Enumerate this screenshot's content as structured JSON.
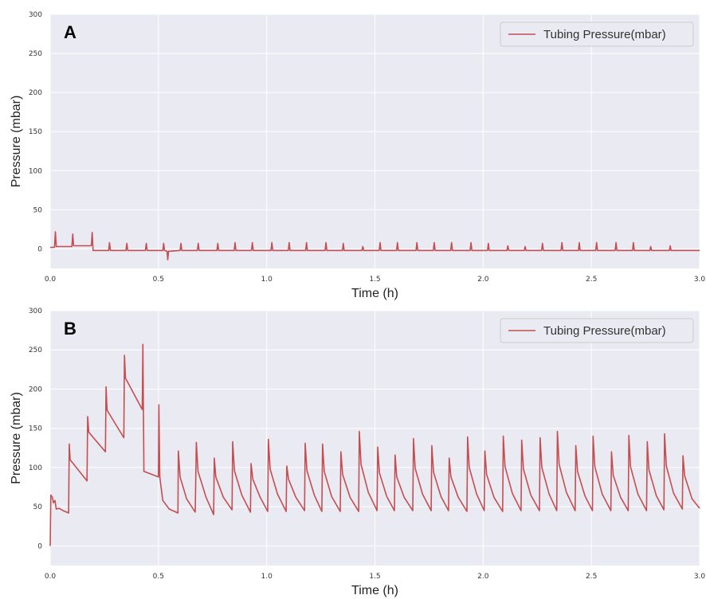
{
  "colors": {
    "plot_background": "#eaeaf2",
    "grid": "#ffffff",
    "series": "#c44e52",
    "legend_border": "#cccccc"
  },
  "chart_data": [
    {
      "type": "line",
      "panel_label": "A",
      "xlabel": "Time (h)",
      "ylabel": "Pressure (mbar)",
      "xlim": [
        0,
        3.0
      ],
      "ylim": [
        -25,
        300
      ],
      "x_ticks": [
        "0.0",
        "0.5",
        "1.0",
        "1.5",
        "2.0",
        "2.5",
        "3.0"
      ],
      "y_ticks": [
        "0",
        "50",
        "100",
        "150",
        "200",
        "250",
        "300"
      ],
      "grid": true,
      "legend_position": "top-right",
      "series": [
        {
          "name": "Tubing Pressure(mbar)",
          "points": [
            [
              0.0,
              2
            ],
            [
              0.02,
              2
            ],
            [
              0.024,
              22
            ],
            [
              0.028,
              3
            ],
            [
              0.1,
              3
            ],
            [
              0.104,
              19
            ],
            [
              0.108,
              4
            ],
            [
              0.19,
              4
            ],
            [
              0.194,
              21
            ],
            [
              0.198,
              -2
            ],
            [
              0.27,
              -2
            ],
            [
              0.274,
              8
            ],
            [
              0.278,
              -2
            ],
            [
              0.35,
              -2
            ],
            [
              0.354,
              7
            ],
            [
              0.358,
              -2
            ],
            [
              0.44,
              -2
            ],
            [
              0.444,
              7
            ],
            [
              0.448,
              -2
            ],
            [
              0.52,
              -2
            ],
            [
              0.524,
              7
            ],
            [
              0.528,
              -2
            ],
            [
              0.54,
              -3
            ],
            [
              0.543,
              -14
            ],
            [
              0.547,
              -3
            ],
            [
              0.6,
              -2
            ],
            [
              0.604,
              7
            ],
            [
              0.608,
              -2
            ],
            [
              0.68,
              -2
            ],
            [
              0.684,
              7
            ],
            [
              0.688,
              -2
            ],
            [
              0.77,
              -2
            ],
            [
              0.774,
              7
            ],
            [
              0.778,
              -2
            ],
            [
              0.85,
              -2
            ],
            [
              0.854,
              8
            ],
            [
              0.858,
              -2
            ],
            [
              0.93,
              -2
            ],
            [
              0.934,
              8
            ],
            [
              0.938,
              -2
            ],
            [
              1.02,
              -2
            ],
            [
              1.024,
              8
            ],
            [
              1.028,
              -2
            ],
            [
              1.1,
              -2
            ],
            [
              1.104,
              8
            ],
            [
              1.108,
              -2
            ],
            [
              1.18,
              -2
            ],
            [
              1.184,
              8
            ],
            [
              1.188,
              -2
            ],
            [
              1.27,
              -2
            ],
            [
              1.274,
              8
            ],
            [
              1.278,
              -2
            ],
            [
              1.35,
              -2
            ],
            [
              1.354,
              7
            ],
            [
              1.358,
              -2
            ],
            [
              1.44,
              -2
            ],
            [
              1.444,
              3
            ],
            [
              1.448,
              -2
            ],
            [
              1.52,
              -2
            ],
            [
              1.524,
              8
            ],
            [
              1.528,
              -2
            ],
            [
              1.6,
              -2
            ],
            [
              1.604,
              8
            ],
            [
              1.608,
              -2
            ],
            [
              1.69,
              -2
            ],
            [
              1.694,
              8
            ],
            [
              1.698,
              -2
            ],
            [
              1.77,
              -2
            ],
            [
              1.774,
              8
            ],
            [
              1.778,
              -2
            ],
            [
              1.85,
              -2
            ],
            [
              1.854,
              8
            ],
            [
              1.858,
              -2
            ],
            [
              1.94,
              -2
            ],
            [
              1.944,
              8
            ],
            [
              1.948,
              -2
            ],
            [
              2.02,
              -2
            ],
            [
              2.024,
              7
            ],
            [
              2.028,
              -2
            ],
            [
              2.11,
              -2
            ],
            [
              2.114,
              4
            ],
            [
              2.118,
              -2
            ],
            [
              2.19,
              -2
            ],
            [
              2.194,
              3
            ],
            [
              2.198,
              -2
            ],
            [
              2.27,
              -2
            ],
            [
              2.274,
              7
            ],
            [
              2.278,
              -2
            ],
            [
              2.36,
              -2
            ],
            [
              2.364,
              8
            ],
            [
              2.368,
              -2
            ],
            [
              2.44,
              -2
            ],
            [
              2.444,
              8
            ],
            [
              2.448,
              -2
            ],
            [
              2.52,
              -2
            ],
            [
              2.524,
              8
            ],
            [
              2.528,
              -2
            ],
            [
              2.61,
              -2
            ],
            [
              2.614,
              8
            ],
            [
              2.618,
              -2
            ],
            [
              2.69,
              -2
            ],
            [
              2.694,
              8
            ],
            [
              2.698,
              -2
            ],
            [
              2.77,
              -2
            ],
            [
              2.774,
              3
            ],
            [
              2.778,
              -2
            ],
            [
              2.86,
              -2
            ],
            [
              2.864,
              4
            ],
            [
              2.868,
              -2
            ],
            [
              3.0,
              -2
            ]
          ]
        }
      ]
    },
    {
      "type": "line",
      "panel_label": "B",
      "xlabel": "Time (h)",
      "ylabel": "Pressure (mbar)",
      "xlim": [
        0,
        3.0
      ],
      "ylim": [
        -25,
        300
      ],
      "x_ticks": [
        "0.0",
        "0.5",
        "1.0",
        "1.5",
        "2.0",
        "2.5",
        "3.0"
      ],
      "y_ticks": [
        "0",
        "50",
        "100",
        "150",
        "200",
        "250",
        "300"
      ],
      "grid": true,
      "legend_position": "top-right",
      "series": [
        {
          "name": "Tubing Pressure(mbar)",
          "points": [
            [
              0.0,
              0
            ],
            [
              0.003,
              65
            ],
            [
              0.01,
              62
            ],
            [
              0.015,
              55
            ],
            [
              0.022,
              58
            ],
            [
              0.028,
              47
            ],
            [
              0.04,
              48
            ],
            [
              0.06,
              45
            ],
            [
              0.085,
              42
            ],
            [
              0.088,
              130
            ],
            [
              0.092,
              110
            ],
            [
              0.17,
              83
            ],
            [
              0.173,
              165
            ],
            [
              0.178,
              145
            ],
            [
              0.255,
              120
            ],
            [
              0.258,
              203
            ],
            [
              0.263,
              173
            ],
            [
              0.34,
              138
            ],
            [
              0.343,
              243
            ],
            [
              0.348,
              214
            ],
            [
              0.425,
              174
            ],
            [
              0.428,
              257
            ],
            [
              0.433,
              95
            ],
            [
              0.5,
              88
            ],
            [
              0.502,
              180
            ],
            [
              0.506,
              88
            ],
            [
              0.52,
              58
            ],
            [
              0.55,
              47
            ],
            [
              0.59,
              42
            ],
            [
              0.592,
              121
            ],
            [
              0.6,
              88
            ],
            [
              0.63,
              60
            ],
            [
              0.67,
              43
            ],
            [
              0.675,
              132
            ],
            [
              0.683,
              95
            ],
            [
              0.72,
              62
            ],
            [
              0.755,
              40
            ],
            [
              0.758,
              112
            ],
            [
              0.765,
              88
            ],
            [
              0.8,
              62
            ],
            [
              0.84,
              46
            ],
            [
              0.843,
              133
            ],
            [
              0.851,
              96
            ],
            [
              0.885,
              65
            ],
            [
              0.925,
              43
            ],
            [
              0.928,
              105
            ],
            [
              0.936,
              85
            ],
            [
              0.97,
              62
            ],
            [
              1.005,
              44
            ],
            [
              1.008,
              136
            ],
            [
              1.016,
              98
            ],
            [
              1.05,
              66
            ],
            [
              1.09,
              44
            ],
            [
              1.093,
              102
            ],
            [
              1.101,
              85
            ],
            [
              1.135,
              62
            ],
            [
              1.175,
              45
            ],
            [
              1.178,
              131
            ],
            [
              1.186,
              96
            ],
            [
              1.22,
              65
            ],
            [
              1.255,
              44
            ],
            [
              1.258,
              130
            ],
            [
              1.266,
              95
            ],
            [
              1.3,
              63
            ],
            [
              1.34,
              44
            ],
            [
              1.343,
              120
            ],
            [
              1.351,
              91
            ],
            [
              1.385,
              62
            ],
            [
              1.425,
              44
            ],
            [
              1.428,
              146
            ],
            [
              1.436,
              104
            ],
            [
              1.47,
              68
            ],
            [
              1.51,
              45
            ],
            [
              1.513,
              126
            ],
            [
              1.521,
              93
            ],
            [
              1.555,
              63
            ],
            [
              1.59,
              45
            ],
            [
              1.593,
              116
            ],
            [
              1.601,
              88
            ],
            [
              1.635,
              62
            ],
            [
              1.675,
              45
            ],
            [
              1.678,
              137
            ],
            [
              1.686,
              99
            ],
            [
              1.72,
              66
            ],
            [
              1.76,
              45
            ],
            [
              1.763,
              128
            ],
            [
              1.771,
              94
            ],
            [
              1.805,
              63
            ],
            [
              1.84,
              45
            ],
            [
              1.843,
              112
            ],
            [
              1.851,
              88
            ],
            [
              1.885,
              62
            ],
            [
              1.925,
              44
            ],
            [
              1.928,
              139
            ],
            [
              1.936,
              100
            ],
            [
              1.97,
              66
            ],
            [
              2.005,
              45
            ],
            [
              2.008,
              121
            ],
            [
              2.016,
              91
            ],
            [
              2.05,
              62
            ],
            [
              2.09,
              44
            ],
            [
              2.093,
              140
            ],
            [
              2.101,
              101
            ],
            [
              2.135,
              67
            ],
            [
              2.175,
              45
            ],
            [
              2.178,
              135
            ],
            [
              2.186,
              98
            ],
            [
              2.22,
              65
            ],
            [
              2.26,
              45
            ],
            [
              2.263,
              138
            ],
            [
              2.271,
              100
            ],
            [
              2.305,
              66
            ],
            [
              2.34,
              45
            ],
            [
              2.343,
              146
            ],
            [
              2.351,
              104
            ],
            [
              2.385,
              68
            ],
            [
              2.425,
              45
            ],
            [
              2.428,
              128
            ],
            [
              2.436,
              95
            ],
            [
              2.47,
              64
            ],
            [
              2.505,
              45
            ],
            [
              2.508,
              140
            ],
            [
              2.516,
              101
            ],
            [
              2.55,
              66
            ],
            [
              2.59,
              45
            ],
            [
              2.593,
              120
            ],
            [
              2.601,
              90
            ],
            [
              2.635,
              62
            ],
            [
              2.67,
              45
            ],
            [
              2.673,
              141
            ],
            [
              2.681,
              101
            ],
            [
              2.715,
              66
            ],
            [
              2.755,
              45
            ],
            [
              2.758,
              133
            ],
            [
              2.766,
              97
            ],
            [
              2.8,
              64
            ],
            [
              2.835,
              46
            ],
            [
              2.838,
              143
            ],
            [
              2.846,
              102
            ],
            [
              2.88,
              67
            ],
            [
              2.92,
              47
            ],
            [
              2.923,
              115
            ],
            [
              2.931,
              89
            ],
            [
              2.965,
              60
            ],
            [
              3.0,
              48
            ]
          ]
        }
      ]
    }
  ]
}
